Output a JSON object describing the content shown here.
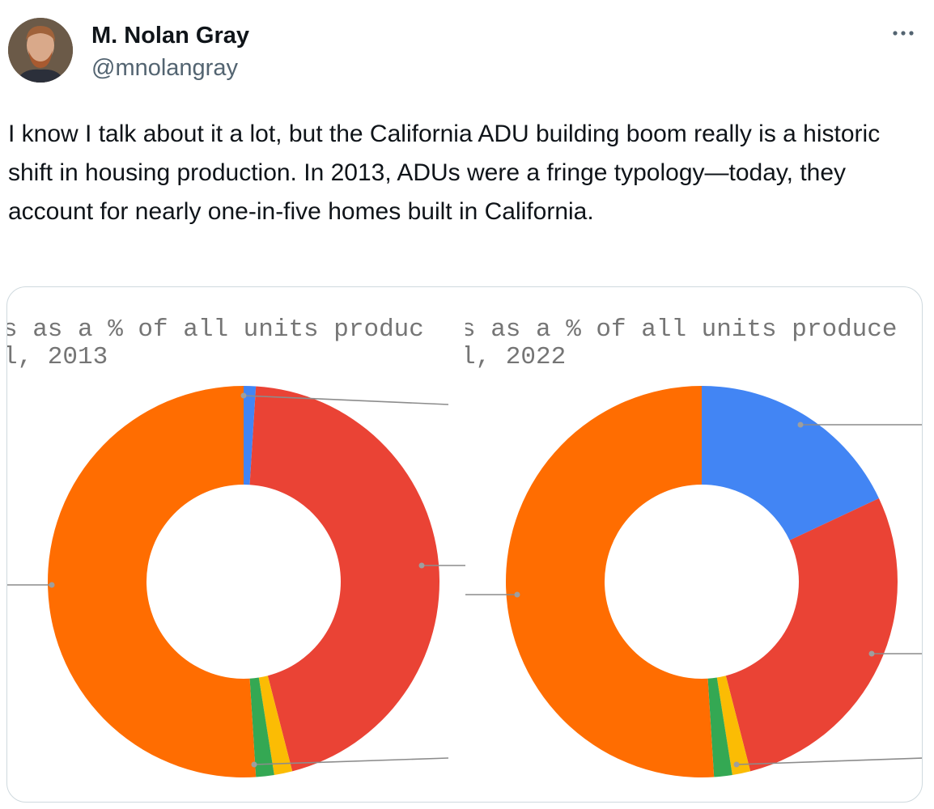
{
  "author": {
    "name": "M. Nolan Gray",
    "handle": "@mnolangray"
  },
  "more_icon": "more-horizontal-icon",
  "tweet": {
    "text": "I know I talk about it a lot, but the California ADU building boom really is a historic shift in housing production. In 2013, ADUs were a fringe typology—today, they account for nearly one-in-five homes built in California."
  },
  "colors": {
    "blue": "#4285f4",
    "red": "#ea4335",
    "yellow": "#fbbc04",
    "green": "#34a853",
    "orange": "#ff6d01"
  },
  "chart_data": [
    {
      "type": "pie",
      "title_line1": "s as a % of all units produc",
      "title_line2": "l, 2013",
      "slices": [
        {
          "color": "#4285f4",
          "value": 1
        },
        {
          "color": "#ea4335",
          "value": 45
        },
        {
          "color": "#fbbc04",
          "value": 1.5
        },
        {
          "color": "#34a853",
          "value": 1.5
        },
        {
          "color": "#ff6d01",
          "value": 51
        }
      ]
    },
    {
      "type": "pie",
      "title_line1": "s as a % of all units produce",
      "title_line2": "l, 2022",
      "slices": [
        {
          "color": "#4285f4",
          "value": 18
        },
        {
          "color": "#ea4335",
          "value": 28
        },
        {
          "color": "#fbbc04",
          "value": 1.5
        },
        {
          "color": "#34a853",
          "value": 1.5
        },
        {
          "color": "#ff6d01",
          "value": 51
        }
      ]
    }
  ]
}
